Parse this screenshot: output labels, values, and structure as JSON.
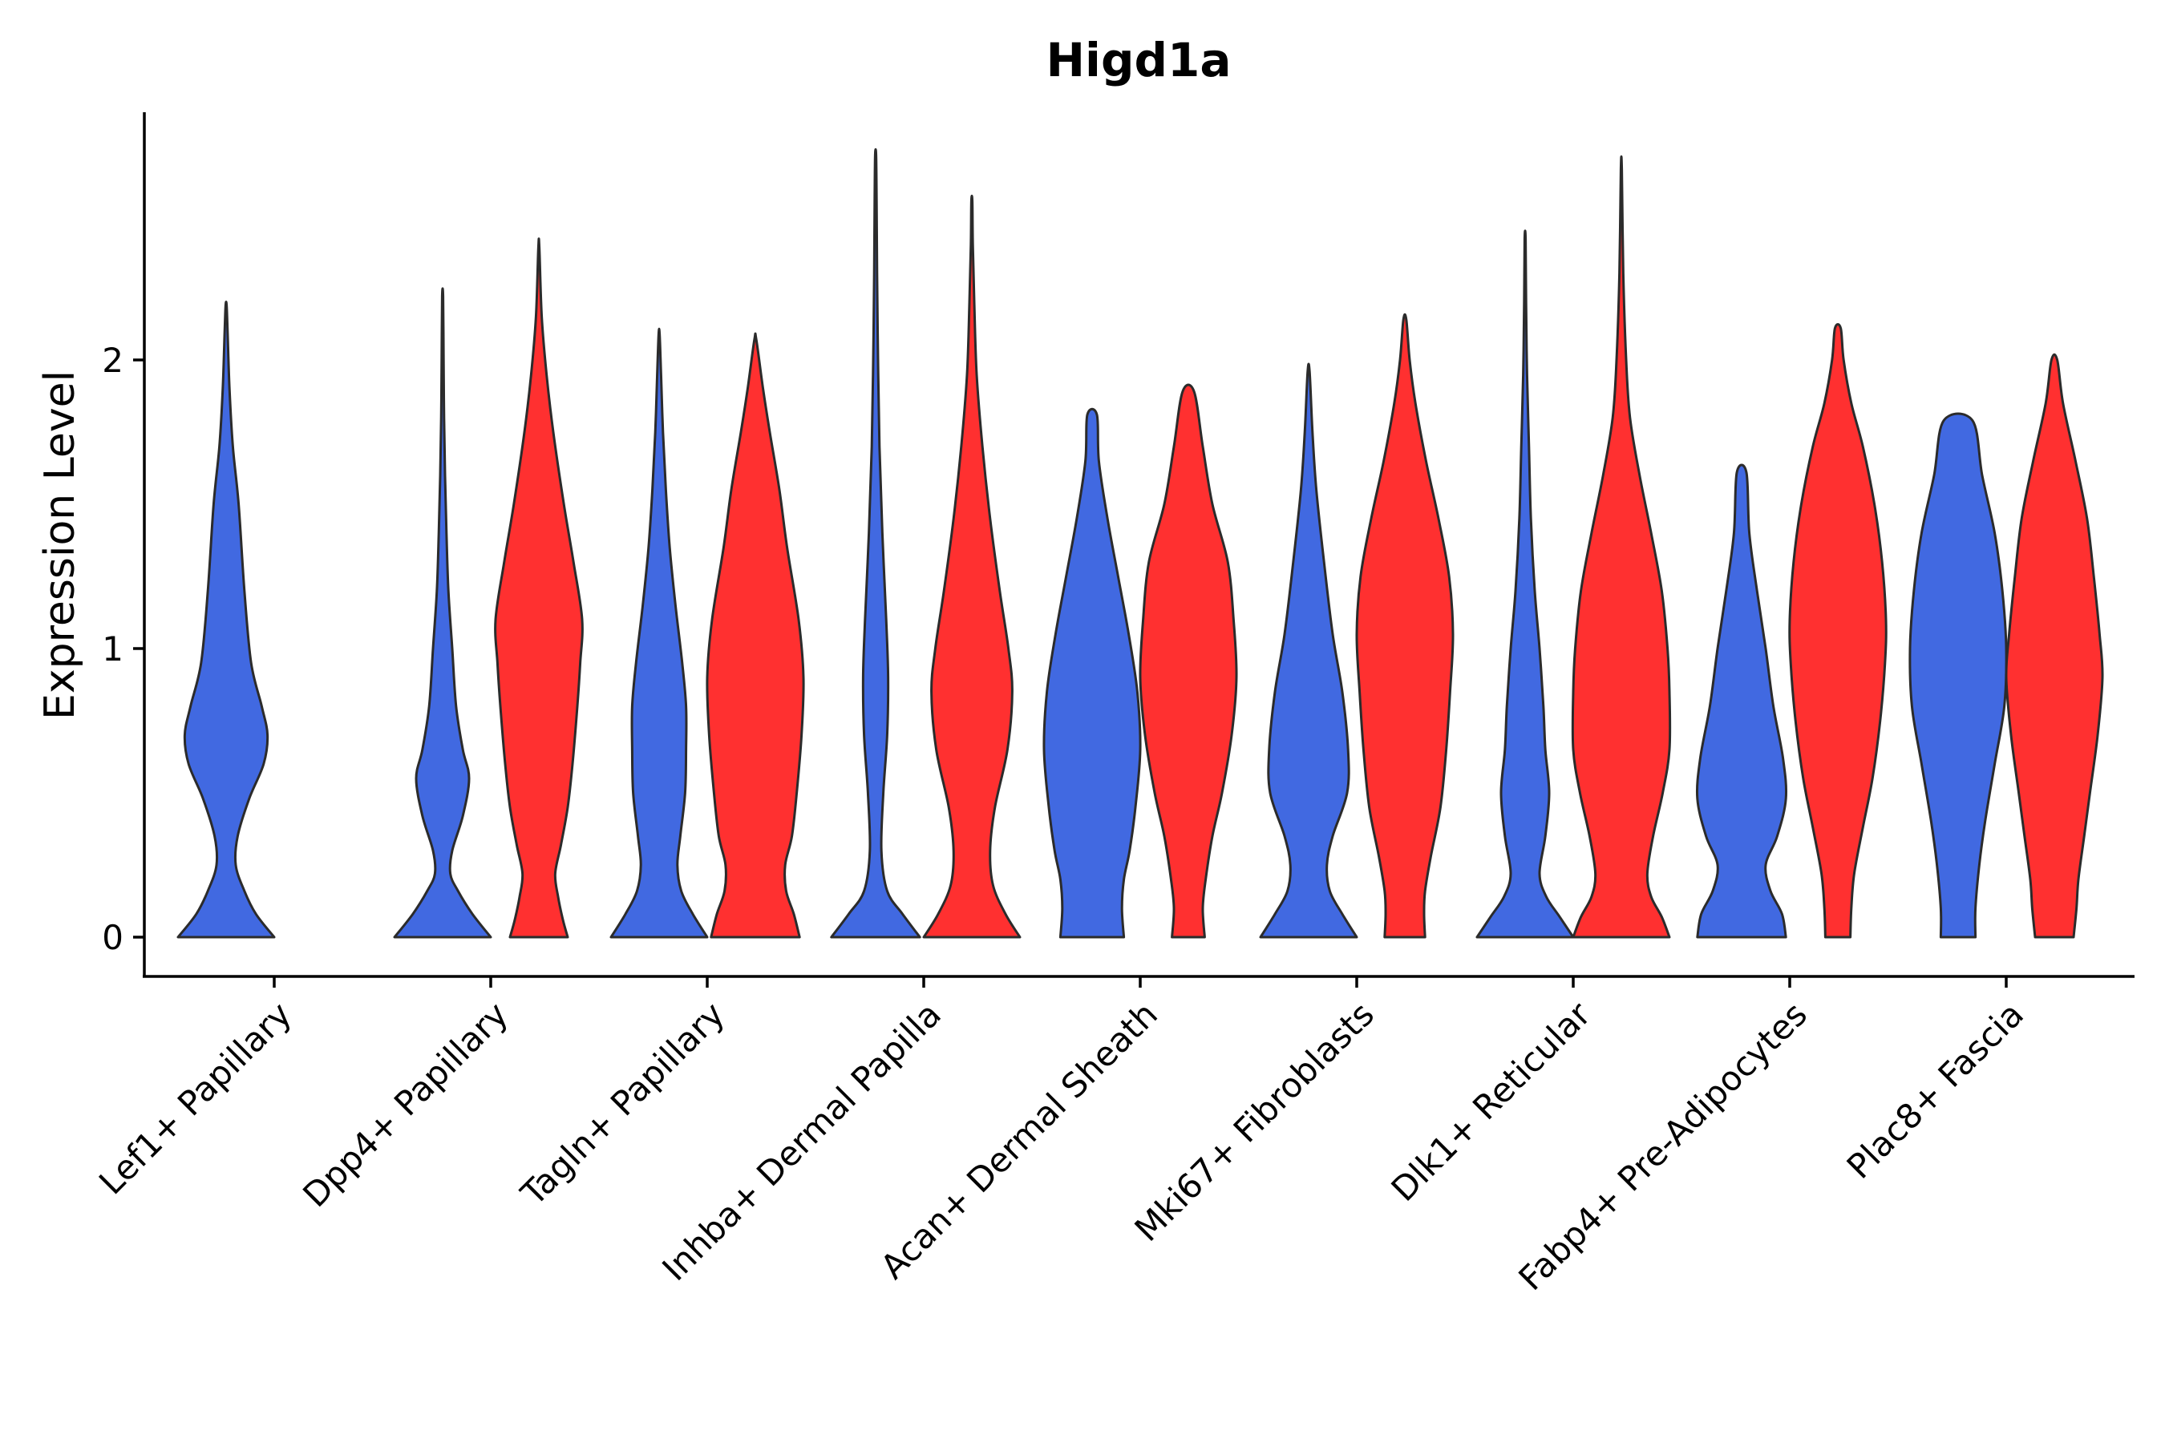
{
  "chart_data": {
    "type": "violin",
    "title": "Higd1a",
    "xlabel": "",
    "ylabel": "Expression Level",
    "ylim": [
      -0.14,
      2.85
    ],
    "yticks": [
      0,
      1,
      2
    ],
    "grid": false,
    "legend": "none",
    "series_colors": {
      "group_1": "#4169E1",
      "group_2": "#FF3030"
    },
    "categories": [
      "Lef1+ Papillary",
      "Dpp4+ Papillary",
      "Tagln+ Papillary",
      "Inhba+ Dermal Papilla",
      "Acan+ Dermal Sheath",
      "Mki67+ Fibroblasts",
      "Dlk1+ Reticular",
      "Fabp4+ Pre-Adipocytes",
      "Plac8+ Fascia"
    ],
    "violins": [
      {
        "category": "Lef1+ Papillary",
        "group": "group_1",
        "max": 2.19,
        "profile": [
          [
            0,
            1.0
          ],
          [
            0.08,
            0.62
          ],
          [
            0.16,
            0.38
          ],
          [
            0.25,
            0.2
          ],
          [
            0.35,
            0.24
          ],
          [
            0.48,
            0.48
          ],
          [
            0.6,
            0.78
          ],
          [
            0.7,
            0.86
          ],
          [
            0.8,
            0.74
          ],
          [
            0.95,
            0.52
          ],
          [
            1.2,
            0.38
          ],
          [
            1.5,
            0.26
          ],
          [
            1.7,
            0.14
          ],
          [
            1.9,
            0.07
          ],
          [
            2.1,
            0.03
          ],
          [
            2.19,
            0.01
          ]
        ]
      },
      {
        "category": "Dpp4+ Papillary",
        "group": "group_1",
        "max": 2.22,
        "profile": [
          [
            0,
            1.0
          ],
          [
            0.08,
            0.62
          ],
          [
            0.16,
            0.32
          ],
          [
            0.22,
            0.16
          ],
          [
            0.3,
            0.2
          ],
          [
            0.42,
            0.42
          ],
          [
            0.55,
            0.55
          ],
          [
            0.65,
            0.42
          ],
          [
            0.8,
            0.28
          ],
          [
            1.0,
            0.2
          ],
          [
            1.2,
            0.12
          ],
          [
            1.4,
            0.08
          ],
          [
            1.6,
            0.05
          ],
          [
            1.8,
            0.03
          ],
          [
            2.0,
            0.02
          ],
          [
            2.22,
            0.01
          ]
        ]
      },
      {
        "category": "Dpp4+ Papillary",
        "group": "group_2",
        "max": 2.39,
        "profile": [
          [
            0,
            0.6
          ],
          [
            0.06,
            0.5
          ],
          [
            0.14,
            0.4
          ],
          [
            0.22,
            0.34
          ],
          [
            0.32,
            0.46
          ],
          [
            0.45,
            0.6
          ],
          [
            0.6,
            0.7
          ],
          [
            0.8,
            0.8
          ],
          [
            0.95,
            0.86
          ],
          [
            1.1,
            0.9
          ],
          [
            1.3,
            0.72
          ],
          [
            1.5,
            0.52
          ],
          [
            1.75,
            0.3
          ],
          [
            1.95,
            0.16
          ],
          [
            2.15,
            0.06
          ],
          [
            2.39,
            0.01
          ]
        ]
      },
      {
        "category": "Tagln+ Papillary",
        "group": "group_1",
        "max": 2.09,
        "profile": [
          [
            0,
            1.0
          ],
          [
            0.08,
            0.7
          ],
          [
            0.16,
            0.46
          ],
          [
            0.25,
            0.38
          ],
          [
            0.35,
            0.44
          ],
          [
            0.5,
            0.54
          ],
          [
            0.65,
            0.56
          ],
          [
            0.8,
            0.56
          ],
          [
            0.95,
            0.48
          ],
          [
            1.15,
            0.34
          ],
          [
            1.35,
            0.22
          ],
          [
            1.55,
            0.14
          ],
          [
            1.75,
            0.08
          ],
          [
            1.95,
            0.04
          ],
          [
            2.09,
            0.01
          ]
        ]
      },
      {
        "category": "Tagln+ Papillary",
        "group": "group_2",
        "max": 2.07,
        "profile": [
          [
            0,
            0.92
          ],
          [
            0.08,
            0.8
          ],
          [
            0.16,
            0.64
          ],
          [
            0.25,
            0.62
          ],
          [
            0.35,
            0.76
          ],
          [
            0.5,
            0.86
          ],
          [
            0.7,
            0.96
          ],
          [
            0.9,
            1.0
          ],
          [
            1.1,
            0.9
          ],
          [
            1.35,
            0.66
          ],
          [
            1.55,
            0.5
          ],
          [
            1.75,
            0.3
          ],
          [
            1.9,
            0.16
          ],
          [
            2.07,
            0.02
          ]
        ]
      },
      {
        "category": "Inhba+ Dermal Papilla",
        "group": "group_1",
        "max": 2.71,
        "profile": [
          [
            0,
            0.92
          ],
          [
            0.08,
            0.56
          ],
          [
            0.16,
            0.24
          ],
          [
            0.3,
            0.12
          ],
          [
            0.5,
            0.16
          ],
          [
            0.7,
            0.24
          ],
          [
            0.9,
            0.26
          ],
          [
            1.1,
            0.22
          ],
          [
            1.4,
            0.14
          ],
          [
            1.7,
            0.08
          ],
          [
            2.0,
            0.05
          ],
          [
            2.3,
            0.03
          ],
          [
            2.55,
            0.02
          ],
          [
            2.71,
            0.01
          ]
        ]
      },
      {
        "category": "Inhba+ Dermal Papilla",
        "group": "group_2",
        "max": 2.55,
        "profile": [
          [
            0,
            1.0
          ],
          [
            0.08,
            0.7
          ],
          [
            0.18,
            0.44
          ],
          [
            0.3,
            0.38
          ],
          [
            0.45,
            0.48
          ],
          [
            0.65,
            0.74
          ],
          [
            0.85,
            0.84
          ],
          [
            1.0,
            0.76
          ],
          [
            1.2,
            0.58
          ],
          [
            1.45,
            0.38
          ],
          [
            1.7,
            0.22
          ],
          [
            1.95,
            0.1
          ],
          [
            2.2,
            0.05
          ],
          [
            2.4,
            0.02
          ],
          [
            2.55,
            0.01
          ]
        ]
      },
      {
        "category": "Acan+ Dermal Sheath",
        "group": "group_1",
        "max": 1.81,
        "profile": [
          [
            0,
            0.66
          ],
          [
            0.1,
            0.62
          ],
          [
            0.2,
            0.66
          ],
          [
            0.3,
            0.78
          ],
          [
            0.45,
            0.9
          ],
          [
            0.65,
            1.0
          ],
          [
            0.85,
            0.94
          ],
          [
            1.05,
            0.76
          ],
          [
            1.25,
            0.54
          ],
          [
            1.45,
            0.32
          ],
          [
            1.65,
            0.14
          ],
          [
            1.81,
            0.1
          ]
        ]
      },
      {
        "category": "Acan+ Dermal Sheath",
        "group": "group_2",
        "max": 1.89,
        "profile": [
          [
            0,
            0.34
          ],
          [
            0.1,
            0.3
          ],
          [
            0.2,
            0.36
          ],
          [
            0.35,
            0.5
          ],
          [
            0.5,
            0.7
          ],
          [
            0.7,
            0.9
          ],
          [
            0.9,
            1.0
          ],
          [
            1.1,
            0.94
          ],
          [
            1.3,
            0.82
          ],
          [
            1.5,
            0.5
          ],
          [
            1.7,
            0.3
          ],
          [
            1.89,
            0.12
          ]
        ]
      },
      {
        "category": "Mki67+ Fibroblasts",
        "group": "group_1",
        "max": 1.96,
        "profile": [
          [
            0,
            1.0
          ],
          [
            0.08,
            0.7
          ],
          [
            0.16,
            0.44
          ],
          [
            0.25,
            0.38
          ],
          [
            0.35,
            0.5
          ],
          [
            0.5,
            0.8
          ],
          [
            0.65,
            0.82
          ],
          [
            0.85,
            0.7
          ],
          [
            1.05,
            0.5
          ],
          [
            1.3,
            0.32
          ],
          [
            1.55,
            0.16
          ],
          [
            1.75,
            0.08
          ],
          [
            1.96,
            0.02
          ]
        ]
      },
      {
        "category": "Mki67+ Fibroblasts",
        "group": "group_2",
        "max": 2.14,
        "profile": [
          [
            0,
            0.42
          ],
          [
            0.08,
            0.4
          ],
          [
            0.16,
            0.42
          ],
          [
            0.28,
            0.54
          ],
          [
            0.45,
            0.74
          ],
          [
            0.65,
            0.86
          ],
          [
            0.85,
            0.94
          ],
          [
            1.05,
            1.0
          ],
          [
            1.25,
            0.92
          ],
          [
            1.45,
            0.7
          ],
          [
            1.65,
            0.44
          ],
          [
            1.85,
            0.22
          ],
          [
            2.0,
            0.1
          ],
          [
            2.14,
            0.03
          ]
        ]
      },
      {
        "category": "Dlk1+ Reticular",
        "group": "group_1",
        "max": 2.42,
        "profile": [
          [
            0,
            1.0
          ],
          [
            0.07,
            0.72
          ],
          [
            0.14,
            0.44
          ],
          [
            0.22,
            0.3
          ],
          [
            0.35,
            0.42
          ],
          [
            0.5,
            0.5
          ],
          [
            0.65,
            0.42
          ],
          [
            0.8,
            0.38
          ],
          [
            1.0,
            0.3
          ],
          [
            1.2,
            0.2
          ],
          [
            1.45,
            0.12
          ],
          [
            1.7,
            0.08
          ],
          [
            1.95,
            0.04
          ],
          [
            2.2,
            0.02
          ],
          [
            2.42,
            0.01
          ]
        ]
      },
      {
        "category": "Dlk1+ Reticular",
        "group": "group_2",
        "max": 2.66,
        "profile": [
          [
            0,
            1.0
          ],
          [
            0.07,
            0.84
          ],
          [
            0.14,
            0.62
          ],
          [
            0.22,
            0.54
          ],
          [
            0.35,
            0.66
          ],
          [
            0.5,
            0.86
          ],
          [
            0.65,
            1.0
          ],
          [
            0.85,
            1.0
          ],
          [
            1.0,
            0.96
          ],
          [
            1.2,
            0.84
          ],
          [
            1.4,
            0.62
          ],
          [
            1.6,
            0.38
          ],
          [
            1.8,
            0.18
          ],
          [
            2.0,
            0.1
          ],
          [
            2.3,
            0.04
          ],
          [
            2.66,
            0.01
          ]
        ]
      },
      {
        "category": "Fabp4+ Pre-Adipocytes",
        "group": "group_1",
        "max": 1.61,
        "profile": [
          [
            0,
            0.92
          ],
          [
            0.08,
            0.84
          ],
          [
            0.16,
            0.6
          ],
          [
            0.25,
            0.5
          ],
          [
            0.35,
            0.74
          ],
          [
            0.48,
            0.92
          ],
          [
            0.62,
            0.86
          ],
          [
            0.8,
            0.66
          ],
          [
            1.0,
            0.5
          ],
          [
            1.2,
            0.32
          ],
          [
            1.4,
            0.16
          ],
          [
            1.61,
            0.1
          ]
        ]
      },
      {
        "category": "Fabp4+ Pre-Adipocytes",
        "group": "group_2",
        "max": 2.11,
        "profile": [
          [
            0,
            0.26
          ],
          [
            0.1,
            0.28
          ],
          [
            0.22,
            0.34
          ],
          [
            0.38,
            0.52
          ],
          [
            0.55,
            0.72
          ],
          [
            0.75,
            0.88
          ],
          [
            0.95,
            0.98
          ],
          [
            1.1,
            1.0
          ],
          [
            1.3,
            0.92
          ],
          [
            1.5,
            0.76
          ],
          [
            1.7,
            0.52
          ],
          [
            1.85,
            0.28
          ],
          [
            2.0,
            0.12
          ],
          [
            2.11,
            0.06
          ]
        ]
      },
      {
        "category": "Plac8+ Fascia",
        "group": "group_1",
        "max": 1.79,
        "profile": [
          [
            0,
            0.36
          ],
          [
            0.1,
            0.36
          ],
          [
            0.25,
            0.44
          ],
          [
            0.4,
            0.56
          ],
          [
            0.6,
            0.76
          ],
          [
            0.8,
            0.96
          ],
          [
            1.0,
            1.0
          ],
          [
            1.2,
            0.92
          ],
          [
            1.4,
            0.76
          ],
          [
            1.6,
            0.5
          ],
          [
            1.79,
            0.3
          ]
        ]
      },
      {
        "category": "Plac8+ Fascia",
        "group": "group_2",
        "max": 2.0,
        "profile": [
          [
            0,
            0.4
          ],
          [
            0.1,
            0.46
          ],
          [
            0.2,
            0.5
          ],
          [
            0.35,
            0.62
          ],
          [
            0.5,
            0.74
          ],
          [
            0.7,
            0.9
          ],
          [
            0.9,
            1.0
          ],
          [
            1.05,
            0.94
          ],
          [
            1.25,
            0.82
          ],
          [
            1.45,
            0.68
          ],
          [
            1.65,
            0.44
          ],
          [
            1.85,
            0.18
          ],
          [
            2.0,
            0.06
          ]
        ]
      }
    ]
  }
}
